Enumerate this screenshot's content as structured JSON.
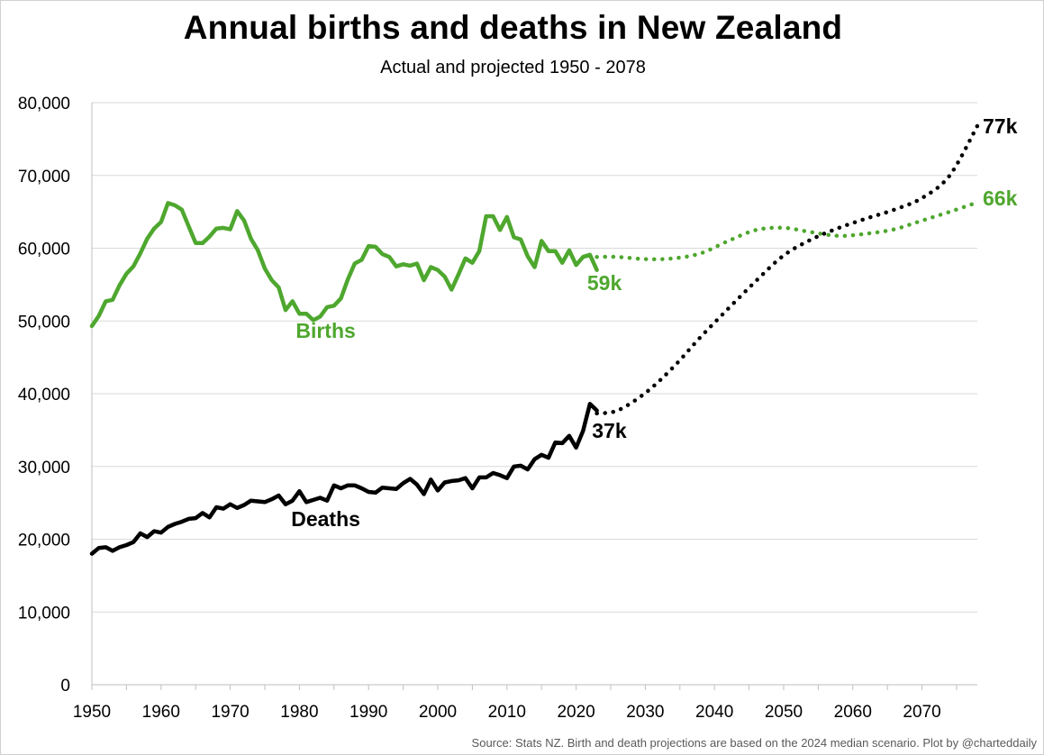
{
  "chart_data": {
    "type": "line",
    "title": "Annual births and deaths in New Zealand",
    "subtitle": "Actual and projected 1950 - 2078",
    "source": "Source: Stats NZ. Birth and death projections are based on the 2024 median scenario.  Plot by @charteddaily",
    "xlim": [
      1950,
      2078
    ],
    "ylim": [
      0,
      80000
    ],
    "x_ticks": [
      "1950",
      "1960",
      "1970",
      "1980",
      "1990",
      "2000",
      "2010",
      "2020",
      "2030",
      "2040",
      "2050",
      "2060",
      "2070"
    ],
    "y_ticks": [
      "0",
      "10,000",
      "20,000",
      "30,000",
      "40,000",
      "50,000",
      "60,000",
      "70,000",
      "80,000"
    ],
    "grid": "horizontal",
    "series": [
      {
        "name": "Births",
        "color": "#4ea72e",
        "actual": {
          "x": [
            1950,
            1951,
            1952,
            1953,
            1954,
            1955,
            1956,
            1957,
            1958,
            1959,
            1960,
            1961,
            1962,
            1963,
            1964,
            1965,
            1966,
            1967,
            1968,
            1969,
            1970,
            1971,
            1972,
            1973,
            1974,
            1975,
            1976,
            1977,
            1978,
            1979,
            1980,
            1981,
            1982,
            1983,
            1984,
            1985,
            1986,
            1987,
            1988,
            1989,
            1990,
            1991,
            1992,
            1993,
            1994,
            1995,
            1996,
            1997,
            1998,
            1999,
            2000,
            2001,
            2002,
            2003,
            2004,
            2005,
            2006,
            2007,
            2008,
            2009,
            2010,
            2011,
            2012,
            2013,
            2014,
            2015,
            2016,
            2017,
            2018,
            2019,
            2020,
            2021,
            2022,
            2023
          ],
          "y": [
            49300,
            50700,
            52700,
            52900,
            54900,
            56500,
            57500,
            59300,
            61300,
            62700,
            63600,
            66200,
            65900,
            65300,
            63000,
            60700,
            60700,
            61600,
            62700,
            62800,
            62600,
            65100,
            63800,
            61300,
            59700,
            57200,
            55600,
            54600,
            51500,
            52700,
            51000,
            51000,
            50100,
            50600,
            51900,
            52100,
            53100,
            55700,
            57900,
            58400,
            60300,
            60200,
            59200,
            58800,
            57500,
            57800,
            57600,
            57900,
            55600,
            57400,
            57000,
            56100,
            54300,
            56400,
            58600,
            58000,
            59600,
            64400,
            64400,
            62500,
            64300,
            61500,
            61200,
            58900,
            57400,
            61000,
            59600,
            59600,
            58000,
            59700,
            57700,
            58800,
            59100,
            57000
          ]
        },
        "projected": {
          "x": [
            2023,
            2026,
            2030,
            2034,
            2038,
            2042,
            2046,
            2050,
            2054,
            2058,
            2062,
            2066,
            2070,
            2074,
            2078
          ],
          "y": [
            58800,
            58800,
            58500,
            58600,
            59300,
            61000,
            62500,
            62800,
            62200,
            61700,
            62000,
            62600,
            63800,
            65000,
            66300
          ]
        },
        "labels": {
          "series_label": "Births",
          "end_label": "59k",
          "proj_label": "66k"
        }
      },
      {
        "name": "Deaths",
        "color": "#000000",
        "actual": {
          "x": [
            1950,
            1951,
            1952,
            1953,
            1954,
            1955,
            1956,
            1957,
            1958,
            1959,
            1960,
            1961,
            1962,
            1963,
            1964,
            1965,
            1966,
            1967,
            1968,
            1969,
            1970,
            1971,
            1972,
            1973,
            1974,
            1975,
            1976,
            1977,
            1978,
            1979,
            1980,
            1981,
            1982,
            1983,
            1984,
            1985,
            1986,
            1987,
            1988,
            1989,
            1990,
            1991,
            1992,
            1993,
            1994,
            1995,
            1996,
            1997,
            1998,
            1999,
            2000,
            2001,
            2002,
            2003,
            2004,
            2005,
            2006,
            2007,
            2008,
            2009,
            2010,
            2011,
            2012,
            2013,
            2014,
            2015,
            2016,
            2017,
            2018,
            2019,
            2020,
            2021,
            2022,
            2023
          ],
          "y": [
            18000,
            18800,
            18900,
            18400,
            18900,
            19200,
            19600,
            20800,
            20300,
            21100,
            20900,
            21700,
            22100,
            22400,
            22800,
            22900,
            23600,
            23000,
            24400,
            24200,
            24800,
            24300,
            24700,
            25300,
            25200,
            25100,
            25500,
            26000,
            24800,
            25300,
            26600,
            25100,
            25400,
            25700,
            25300,
            27400,
            27000,
            27400,
            27400,
            27000,
            26500,
            26400,
            27100,
            27000,
            26900,
            27700,
            28300,
            27500,
            26200,
            28200,
            26700,
            27800,
            28000,
            28100,
            28400,
            27000,
            28500,
            28500,
            29100,
            28800,
            28400,
            30000,
            30100,
            29600,
            31000,
            31600,
            31200,
            33300,
            33200,
            34200,
            32600,
            34900,
            38600,
            37700
          ]
        },
        "projected": {
          "x": [
            2023,
            2026,
            2030,
            2034,
            2038,
            2042,
            2046,
            2050,
            2054,
            2058,
            2062,
            2066,
            2070,
            2074,
            2078
          ],
          "y": [
            37300,
            37700,
            40100,
            43600,
            47800,
            51700,
            55500,
            59000,
            61200,
            62800,
            64100,
            65300,
            66900,
            70000,
            76800
          ]
        },
        "labels": {
          "series_label": "Deaths",
          "end_label": "37k",
          "proj_label": "77k"
        }
      }
    ]
  }
}
